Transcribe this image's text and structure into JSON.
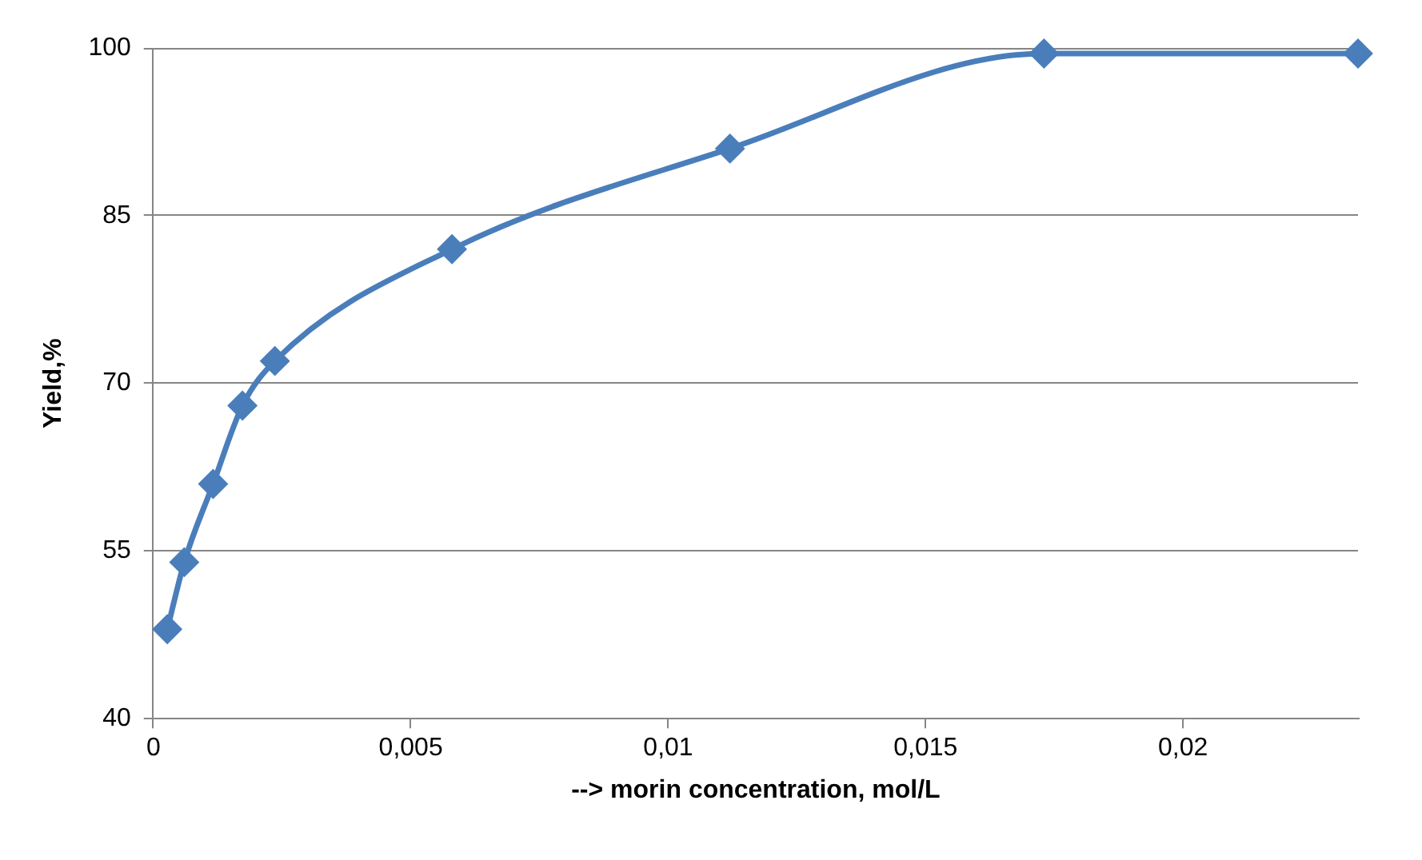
{
  "chart_data": {
    "type": "line",
    "xlabel": "--> morin concentration, mol/L",
    "ylabel": "Yield,%",
    "series": [
      {
        "color": "#4a7ebb",
        "x": [
          0.00027,
          0.0006,
          0.00116,
          0.00173,
          0.00236,
          0.0058,
          0.0112,
          0.0173,
          0.0234
        ],
        "values": [
          48,
          54,
          61,
          68,
          72,
          82,
          91,
          99.5,
          99.5
        ]
      }
    ],
    "xlim": [
      0,
      0.0234
    ],
    "xticks": [
      0,
      {
        "value": 0.005,
        "label": "0,005"
      },
      {
        "value": 0.01,
        "label": "0,01"
      },
      {
        "value": 0.015,
        "label": "0,015"
      },
      {
        "value": 0.02,
        "label": "0,02"
      }
    ],
    "ylim": [
      40,
      100
    ],
    "yticks": [
      40,
      55,
      70,
      85,
      100
    ],
    "grid": "y",
    "legend": false,
    "marker": "diamond",
    "line_style": "solid"
  }
}
